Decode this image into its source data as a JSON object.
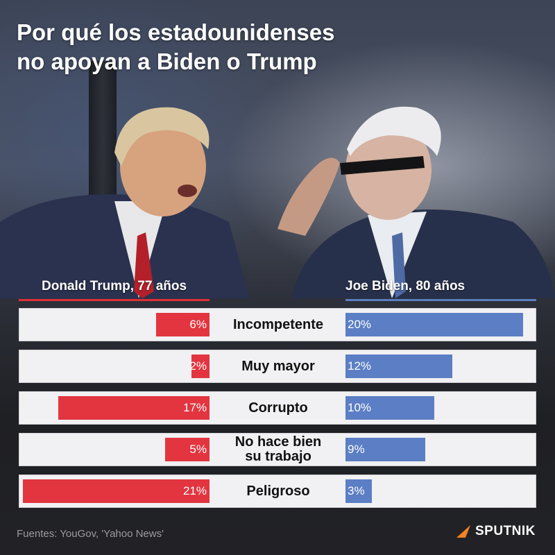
{
  "title_line1": "Por qué los estadounidenses",
  "title_line2": "no apoyan a Biden o Trump",
  "chart_data": {
    "type": "bar",
    "orientation": "horizontal-diverging",
    "categories": [
      "Incompetente",
      "Muy mayor",
      "Corrupto",
      "No hace bien su trabajo",
      "Peligroso"
    ],
    "category_lines": [
      [
        "Incompetente"
      ],
      [
        "Muy mayor"
      ],
      [
        "Corrupto"
      ],
      [
        "No hace bien",
        "su trabajo"
      ],
      [
        "Peligroso"
      ]
    ],
    "series": [
      {
        "name": "Donald Trump, 77 años",
        "values": [
          6,
          2,
          17,
          5,
          21
        ],
        "labels": [
          "6%",
          "2%",
          "17%",
          "5%",
          "21%"
        ],
        "color": "#e2353f",
        "side": "left"
      },
      {
        "name": "Joe Biden, 80 años",
        "values": [
          20,
          12,
          10,
          9,
          3
        ],
        "labels": [
          "20%",
          "12%",
          "10%",
          "9%",
          "3%"
        ],
        "color": "#5b7ec4",
        "side": "right"
      }
    ],
    "unit": "%",
    "scale_max": 21
  },
  "source": "Fuentes: YouGov, 'Yahoo News'",
  "brand": "SPUTNIK",
  "colors": {
    "trump": "#e2353f",
    "biden": "#5b7ec4",
    "row_bg": "#f1f1f3"
  }
}
